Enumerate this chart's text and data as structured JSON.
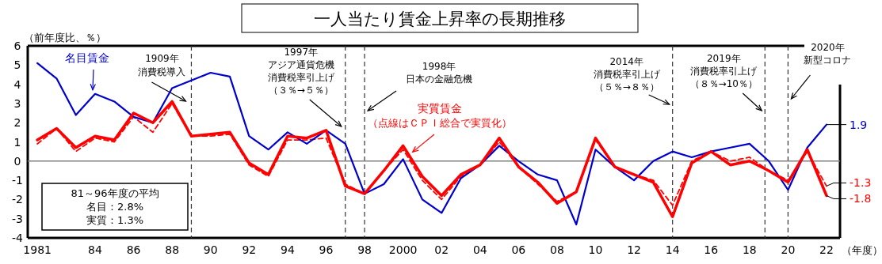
{
  "chart_data": {
    "type": "line",
    "title": "一人当たり賃金上昇率の長期推移",
    "xlabel": "（年度）",
    "ylabel": "（前年度比、％）",
    "x": [
      1981,
      1982,
      1983,
      1984,
      1985,
      1986,
      1987,
      1988,
      1989,
      1990,
      1991,
      1992,
      1993,
      1994,
      1995,
      1996,
      1997,
      1998,
      1999,
      2000,
      2001,
      2002,
      2003,
      2004,
      2005,
      2006,
      2007,
      2008,
      2009,
      2010,
      2011,
      2012,
      2013,
      2014,
      2015,
      2016,
      2017,
      2018,
      2019,
      2020,
      2021,
      2022
    ],
    "xlim": [
      1980.5,
      2022.7
    ],
    "xticks": [
      1981,
      {
        "value": 1984,
        "label": "84"
      },
      {
        "value": 1986,
        "label": "86"
      },
      {
        "value": 1988,
        "label": "88"
      },
      {
        "value": 1990,
        "label": "90"
      },
      {
        "value": 1992,
        "label": "92"
      },
      {
        "value": 1994,
        "label": "94"
      },
      {
        "value": 1996,
        "label": "96"
      },
      {
        "value": 1998,
        "label": "98"
      },
      2000,
      {
        "value": 2002,
        "label": "02"
      },
      {
        "value": 2004,
        "label": "04"
      },
      {
        "value": 2006,
        "label": "06"
      },
      {
        "value": 2008,
        "label": "08"
      },
      {
        "value": 2010,
        "label": "10"
      },
      {
        "value": 2012,
        "label": "12"
      },
      {
        "value": 2014,
        "label": "14"
      },
      {
        "value": 2016,
        "label": "16"
      },
      {
        "value": 2018,
        "label": "18"
      },
      {
        "value": 2020,
        "label": "20"
      },
      {
        "value": 2022,
        "label": "22"
      }
    ],
    "ylim": [
      -4,
      6
    ],
    "yticks": [
      -4,
      -3,
      -2,
      -1,
      0,
      1,
      2,
      3,
      4,
      5,
      6
    ],
    "series": [
      {
        "name": "名目賃金",
        "color": "#0000cc",
        "line_style": "solid",
        "values": [
          5.1,
          4.3,
          2.4,
          3.5,
          3.1,
          2.3,
          2.0,
          3.8,
          4.2,
          4.6,
          4.4,
          1.3,
          0.6,
          1.5,
          0.9,
          1.6,
          0.9,
          -1.7,
          -1.2,
          0.1,
          -2.0,
          -2.7,
          -0.9,
          -0.2,
          0.8,
          0.0,
          -0.7,
          -1.0,
          -3.3,
          0.6,
          -0.3,
          -1.0,
          0.0,
          0.5,
          0.2,
          0.5,
          0.7,
          0.9,
          0.0,
          -1.5,
          0.7,
          1.9
        ],
        "value_labels": [
          null,
          null,
          null,
          null,
          null,
          null,
          null,
          null,
          null,
          null,
          null,
          null,
          null,
          null,
          null,
          null,
          null,
          null,
          null,
          null,
          null,
          null,
          null,
          null,
          null,
          null,
          null,
          null,
          null,
          null,
          null,
          null,
          null,
          null,
          null,
          null,
          null,
          null,
          null,
          null,
          null,
          "1.9"
        ]
      },
      {
        "name": "実質賃金",
        "color": "#ff0000",
        "line_style": "solid",
        "values": [
          1.1,
          1.7,
          0.7,
          1.3,
          1.1,
          2.5,
          2.0,
          3.1,
          1.3,
          1.4,
          1.5,
          -0.1,
          -0.7,
          1.3,
          1.2,
          1.6,
          -1.3,
          -1.7,
          -0.5,
          0.8,
          -0.8,
          -1.8,
          -0.7,
          -0.2,
          1.2,
          -0.3,
          -1.1,
          -2.2,
          -1.6,
          1.2,
          -0.3,
          -0.7,
          -1.1,
          -2.9,
          -0.1,
          0.5,
          -0.2,
          0.0,
          -0.5,
          -1.1,
          0.6,
          -1.8
        ],
        "value_labels": [
          null,
          null,
          null,
          null,
          null,
          null,
          null,
          null,
          null,
          null,
          null,
          null,
          null,
          null,
          null,
          null,
          null,
          null,
          null,
          null,
          null,
          null,
          null,
          null,
          null,
          null,
          null,
          null,
          null,
          null,
          null,
          null,
          null,
          null,
          null,
          null,
          null,
          null,
          null,
          null,
          null,
          "-1.8"
        ]
      },
      {
        "color": "#ff0000",
        "line_style": "dashed",
        "values": [
          0.9,
          1.7,
          0.5,
          1.2,
          1.0,
          2.3,
          1.5,
          3.0,
          1.3,
          1.3,
          1.4,
          -0.2,
          -0.8,
          1.1,
          1.1,
          1.2,
          -1.2,
          -1.7,
          -0.5,
          0.6,
          -1.0,
          -2.0,
          -0.8,
          -0.2,
          1.0,
          -0.3,
          -1.2,
          -2.1,
          -1.6,
          1.1,
          -0.3,
          -0.7,
          -1.0,
          -2.3,
          0.0,
          0.5,
          0.0,
          0.2,
          -0.5,
          -1.0,
          0.5,
          -1.3
        ],
        "value_labels": [
          null,
          null,
          null,
          null,
          null,
          null,
          null,
          null,
          null,
          null,
          null,
          null,
          null,
          null,
          null,
          null,
          null,
          null,
          null,
          null,
          null,
          null,
          null,
          null,
          null,
          null,
          null,
          null,
          null,
          null,
          null,
          null,
          null,
          null,
          null,
          null,
          null,
          null,
          null,
          null,
          null,
          "-1.3"
        ]
      }
    ],
    "ref_lines": [
      {
        "axis": "x",
        "value": 1989,
        "label": "1909年消費税導入",
        "color": "#333333",
        "line_style": "dashed"
      },
      {
        "axis": "x",
        "value": 1997,
        "label": "1997年アジア通貨危機消費税率引上げ（３％→５％）",
        "color": "#333333",
        "line_style": "dashed"
      },
      {
        "axis": "x",
        "value": 1998,
        "label": "1998年日本の金融危機",
        "color": "#333333",
        "line_style": "dashed"
      },
      {
        "axis": "x",
        "value": 2014,
        "label": "2014年消費税率引上げ（５％→８％）",
        "color": "#333333",
        "line_style": "dashed"
      },
      {
        "axis": "x",
        "value": 2018.8,
        "label": "2019年消費税率引上げ（８％→10％）",
        "color": "#333333",
        "line_style": "dashed"
      },
      {
        "axis": "x",
        "value": 2020,
        "label": "2020年新型コロナ",
        "color": "#333333",
        "line_style": "dashed"
      },
      {
        "axis": "y",
        "value": 0,
        "color": "#808080",
        "line_style": "solid"
      }
    ],
    "annotations": [
      "（点線はＣＰＩ総合で実質化）",
      "81～96年度の平均名目：2.8%実質：1.3%"
    ]
  }
}
